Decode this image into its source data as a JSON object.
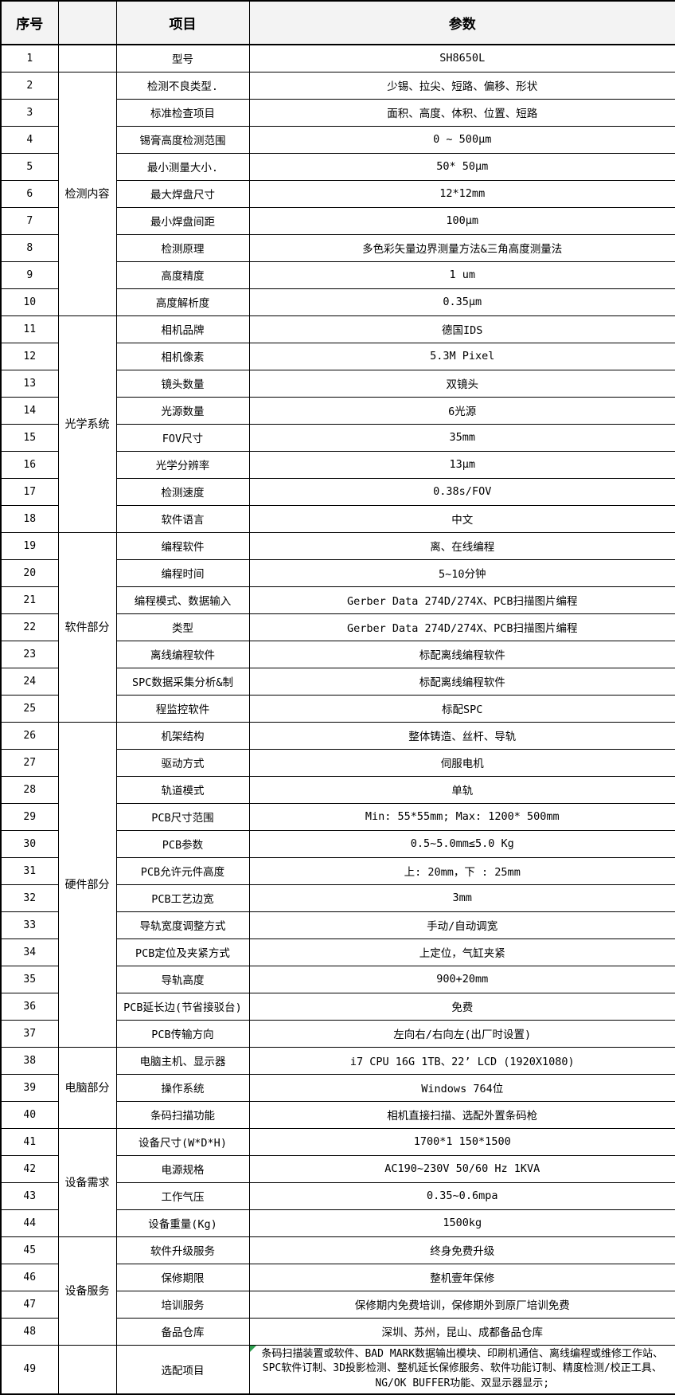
{
  "colors": {
    "border": "#000000",
    "header_bg": "#f3f3f3",
    "comment_marker": "#2e9e4f"
  },
  "header": {
    "no": "序号",
    "category": "",
    "item": "项目",
    "param": "参数"
  },
  "categories": [
    {
      "label": "",
      "start": 1,
      "span": 1
    },
    {
      "label": "检测内容",
      "start": 2,
      "span": 9
    },
    {
      "label": "光学系统",
      "start": 11,
      "span": 8
    },
    {
      "label": "软件部分",
      "start": 19,
      "span": 7
    },
    {
      "label": "硬件部分",
      "start": 26,
      "span": 12
    },
    {
      "label": "电脑部分",
      "start": 38,
      "span": 3
    },
    {
      "label": "设备需求",
      "start": 41,
      "span": 4
    },
    {
      "label": "设备服务",
      "start": 45,
      "span": 4
    },
    {
      "label": "",
      "start": 49,
      "span": 1
    }
  ],
  "rows": [
    {
      "no": 1,
      "item": "型号",
      "param": "SH8650L"
    },
    {
      "no": 2,
      "item": "检测不良类型.",
      "param": "少锡、拉尖、短路、偏移、形状"
    },
    {
      "no": 3,
      "item": "标准检查项目",
      "param": "面积、高度、体积、位置、短路"
    },
    {
      "no": 4,
      "item": "锡膏高度检测范围",
      "param": "0 ~ 500μm"
    },
    {
      "no": 5,
      "item": "最小测量大小.",
      "param": "50* 50μm"
    },
    {
      "no": 6,
      "item": "最大焊盘尺寸",
      "param": "12*12mm"
    },
    {
      "no": 7,
      "item": "最小焊盘间距",
      "param": "100μm"
    },
    {
      "no": 8,
      "item": "检测原理",
      "param": "多色彩矢量边界测量方法&三角高度测量法"
    },
    {
      "no": 9,
      "item": "高度精度",
      "param": "1 um"
    },
    {
      "no": 10,
      "item": "高度解析度",
      "param": "0.35μm"
    },
    {
      "no": 11,
      "item": "相机品牌",
      "param": "德国IDS"
    },
    {
      "no": 12,
      "item": "相机像素",
      "param": "5.3M Pixel"
    },
    {
      "no": 13,
      "item": "镜头数量",
      "param": "双镜头"
    },
    {
      "no": 14,
      "item": "光源数量",
      "param": "6光源"
    },
    {
      "no": 15,
      "item": "FOV尺寸",
      "param": "35mm"
    },
    {
      "no": 16,
      "item": "光学分辨率",
      "param": "13μm"
    },
    {
      "no": 17,
      "item": "检测速度",
      "param": "0.38s/FOV"
    },
    {
      "no": 18,
      "item": "软件语言",
      "param": "中文"
    },
    {
      "no": 19,
      "item": "编程软件",
      "param": "离、在线编程"
    },
    {
      "no": 20,
      "item": "编程时间",
      "param": "5~10分钟"
    },
    {
      "no": 21,
      "item": "编程模式、数据输入",
      "param": "Gerber Data 274D/274X、PCB扫描图片编程"
    },
    {
      "no": 22,
      "item": "类型",
      "param": "Gerber Data 274D/274X、PCB扫描图片编程"
    },
    {
      "no": 23,
      "item": "离线编程软件",
      "param": "标配离线编程软件"
    },
    {
      "no": 24,
      "item": "SPC数据采集分析&制",
      "param": "标配离线编程软件"
    },
    {
      "no": 25,
      "item": "程监控软件",
      "param": "标配SPC"
    },
    {
      "no": 26,
      "item": "机架结构",
      "param": "整体铸造、丝杆、导轨"
    },
    {
      "no": 27,
      "item": "驱动方式",
      "param": "伺服电机"
    },
    {
      "no": 28,
      "item": "轨道模式",
      "param": "单轨"
    },
    {
      "no": 29,
      "item": "PCB尺寸范围",
      "param": "Min: 55*55mm; Max: 1200* 500mm"
    },
    {
      "no": 30,
      "item": "PCB参数",
      "param": "0.5~5.0mm≤5.0 Kg"
    },
    {
      "no": 31,
      "item": "PCB允许元件高度",
      "param": "上: 20mm，下 : 25mm"
    },
    {
      "no": 32,
      "item": "PCB工艺边宽",
      "param": "3mm"
    },
    {
      "no": 33,
      "item": "导轨宽度调整方式",
      "param": "手动/自动调宽"
    },
    {
      "no": 34,
      "item": "PCB定位及夹紧方式",
      "param": "上定位，气缸夹紧"
    },
    {
      "no": 35,
      "item": "导轨高度",
      "param": "900+20mm"
    },
    {
      "no": 36,
      "item": "PCB延长边(节省接驳台)",
      "param": "免费"
    },
    {
      "no": 37,
      "item": "PCB传输方向",
      "param": "左向右/右向左(出厂时设置)"
    },
    {
      "no": 38,
      "item": "电脑主机、显示器",
      "param": "i7 CPU 16G 1TB、22’ LCD (1920X1080)"
    },
    {
      "no": 39,
      "item": "操作系统",
      "param": "Windows 764位"
    },
    {
      "no": 40,
      "item": "条码扫描功能",
      "param": "相机直接扫描、选配外置条码枪"
    },
    {
      "no": 41,
      "item": "设备尺寸(W*D*H)",
      "param": "1700*1 150*1500"
    },
    {
      "no": 42,
      "item": "电源规格",
      "param": "AC190~230V 50/60 Hz 1KVA"
    },
    {
      "no": 43,
      "item": "工作气压",
      "param": "0.35~0.6mpa"
    },
    {
      "no": 44,
      "item": "设备重量(Kg)",
      "param": "1500kg"
    },
    {
      "no": 45,
      "item": "软件升级服务",
      "param": "终身免费升级"
    },
    {
      "no": 46,
      "item": "保修期限",
      "param": "整机壹年保修"
    },
    {
      "no": 47,
      "item": "培训服务",
      "param": "保修期内免费培训，保修期外到原厂培训免费"
    },
    {
      "no": 48,
      "item": "备品仓库",
      "param": "深圳、苏州，昆山、成都备品仓库"
    },
    {
      "no": 49,
      "item": "选配项目",
      "param": "条码扫描装置或软件、BAD MARK数据输出模块、印刷机通信、离线编程或维修工作站、SPC软件订制、3D投影检测、整机延长保修服务、软件功能订制、精度检测/校正工具、NG/OK BUFFER功能、双显示器显示;",
      "comment_marker": true
    }
  ]
}
